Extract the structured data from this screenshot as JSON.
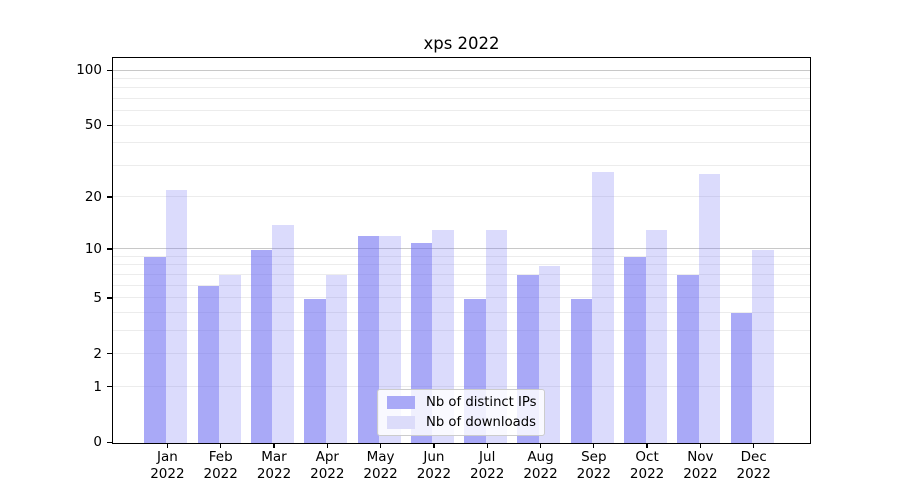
{
  "title": "xps 2022",
  "y_axis": {
    "tick_labels": [
      "0",
      "1",
      "2",
      "5",
      "10",
      "20",
      "50",
      "100"
    ]
  },
  "x_axis": {
    "ticks": [
      {
        "month": "Jan",
        "year": "2022"
      },
      {
        "month": "Feb",
        "year": "2022"
      },
      {
        "month": "Mar",
        "year": "2022"
      },
      {
        "month": "Apr",
        "year": "2022"
      },
      {
        "month": "May",
        "year": "2022"
      },
      {
        "month": "Jun",
        "year": "2022"
      },
      {
        "month": "Jul",
        "year": "2022"
      },
      {
        "month": "Aug",
        "year": "2022"
      },
      {
        "month": "Sep",
        "year": "2022"
      },
      {
        "month": "Oct",
        "year": "2022"
      },
      {
        "month": "Nov",
        "year": "2022"
      },
      {
        "month": "Dec",
        "year": "2022"
      }
    ]
  },
  "legend": {
    "items": [
      {
        "label": "Nb of distinct IPs",
        "swatch_color": "#a9a9f7"
      },
      {
        "label": "Nb of downloads",
        "swatch_color": "#dcdcfa"
      }
    ]
  },
  "colors": {
    "bar_distinct_ips": "rgba(112,112,242,0.60)",
    "bar_downloads": "rgba(112,112,242,0.25)",
    "grid_minor": "#ececec",
    "grid_major": "#c8c8c8",
    "spine": "#000000",
    "legend_border": "#cccccc"
  },
  "chart_data": {
    "type": "bar",
    "title": "xps 2022",
    "categories": [
      "Jan 2022",
      "Feb 2022",
      "Mar 2022",
      "Apr 2022",
      "May 2022",
      "Jun 2022",
      "Jul 2022",
      "Aug 2022",
      "Sep 2022",
      "Oct 2022",
      "Nov 2022",
      "Dec 2022"
    ],
    "series": [
      {
        "name": "Nb of distinct IPs",
        "values": [
          9,
          6,
          10,
          5,
          12,
          11,
          5,
          7,
          5,
          9,
          7,
          4
        ]
      },
      {
        "name": "Nb of downloads",
        "values": [
          22,
          7,
          14,
          7,
          12,
          13,
          13,
          8,
          28,
          13,
          27,
          10
        ]
      }
    ],
    "xlabel": "",
    "ylabel": "",
    "yscale": "log1p",
    "y_ticks": [
      0,
      1,
      2,
      5,
      10,
      20,
      50,
      100
    ],
    "grid_values": [
      1,
      2,
      3,
      4,
      5,
      6,
      7,
      8,
      9,
      10,
      20,
      30,
      40,
      50,
      60,
      70,
      80,
      90,
      100
    ],
    "major_grid_values": [
      10,
      100
    ],
    "ylim": [
      0,
      116
    ],
    "grid": "horizontal",
    "legend_position": "lower center"
  }
}
